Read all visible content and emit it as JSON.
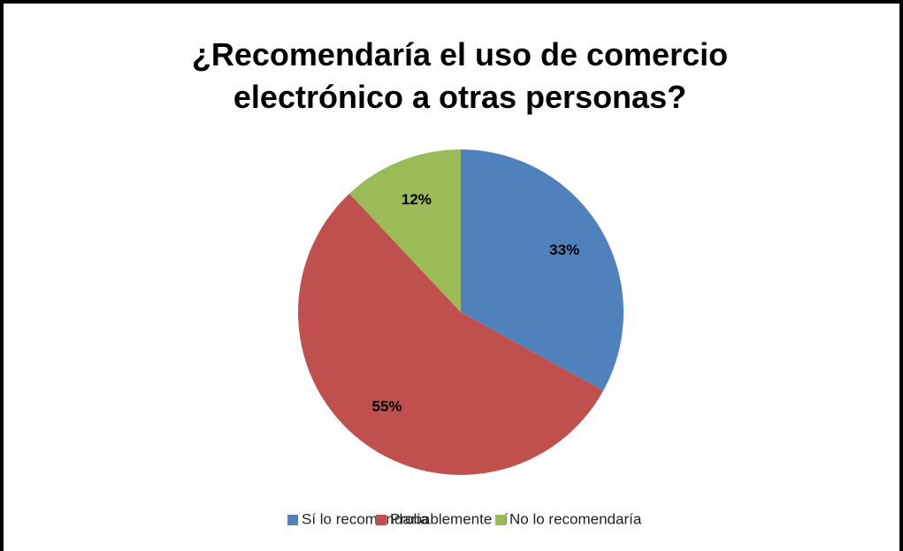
{
  "chart_data": {
    "type": "pie",
    "title": "¿Recomendaría el uso de comercio electrónico a otras personas?",
    "categories": [
      "Sí lo recomendaría",
      "Probablemente sí",
      "No lo recomendaría"
    ],
    "values": [
      33,
      55,
      12
    ],
    "value_labels": [
      "33%",
      "55%",
      "12%"
    ],
    "colors": [
      "#4f81bd",
      "#c0504d",
      "#9bbb59"
    ],
    "legend": "bottom"
  }
}
